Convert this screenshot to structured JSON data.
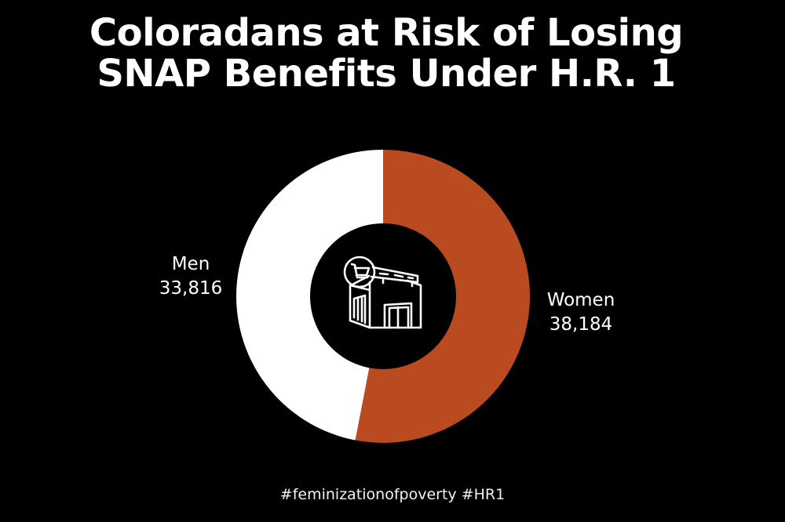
{
  "title": {
    "line1": "Coloradans at Risk of Losing",
    "line2": "SNAP Benefits Under H.R. 1"
  },
  "center_icon": "grocery-store-with-cart-icon",
  "hashtags": "#feminizationofpoverty #HR1",
  "colors": {
    "background": "#000000",
    "women": "#BA4A1F",
    "men": "#FFFFFF",
    "text": "#FFFFFF"
  },
  "labels": {
    "men": {
      "name": "Men",
      "value": "33,816"
    },
    "women": {
      "name": "Women",
      "value": "38,184"
    }
  },
  "chart_data": {
    "type": "pie",
    "subtype": "donut",
    "title": "Coloradans at Risk of Losing SNAP Benefits Under H.R. 1",
    "categories": [
      "Women",
      "Men"
    ],
    "values": [
      38184,
      33816
    ],
    "colors": [
      "#BA4A1F",
      "#FFFFFF"
    ],
    "start_angle": "12 o'clock, clockwise",
    "legend": "direct labels beside slices",
    "annotations": [
      "#feminizationofpoverty #HR1"
    ]
  }
}
